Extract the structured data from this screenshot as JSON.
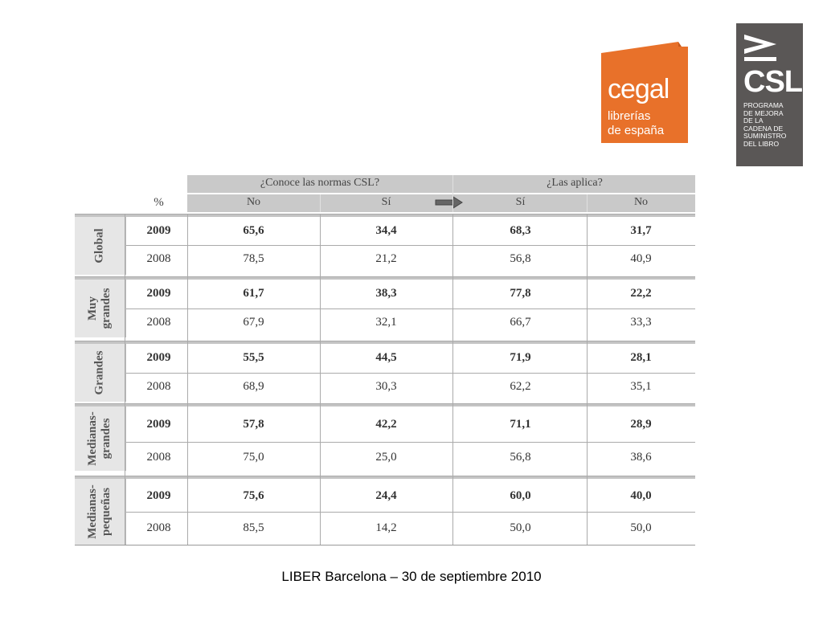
{
  "logos": {
    "cegal": {
      "main": "cegal",
      "sub1": "librerías",
      "sub2": "de españa",
      "color": "#e8712a"
    },
    "csl": {
      "mark": "CSL",
      "lines": [
        "PROGRAMA",
        "DE MEJORA",
        "DE LA",
        "CADENA DE",
        "SUMINISTRO",
        "DEL LIBRO"
      ],
      "color": "#5a5756"
    }
  },
  "table": {
    "unit": "%",
    "group1": "¿Conoce las normas CSL?",
    "group2": "¿Las aplica?",
    "columns": [
      "No",
      "Sí",
      "Sí",
      "No"
    ],
    "sections": [
      {
        "label": "Global",
        "rows": [
          {
            "year": "2009",
            "values": [
              "65,6",
              "34,4",
              "68,3",
              "31,7"
            ]
          },
          {
            "year": "2008",
            "values": [
              "78,5",
              "21,2",
              "56,8",
              "40,9"
            ]
          }
        ]
      },
      {
        "label": "Muy grandes",
        "rows": [
          {
            "year": "2009",
            "values": [
              "61,7",
              "38,3",
              "77,8",
              "22,2"
            ]
          },
          {
            "year": "2008",
            "values": [
              "67,9",
              "32,1",
              "66,7",
              "33,3"
            ]
          }
        ]
      },
      {
        "label": "Grandes",
        "rows": [
          {
            "year": "2009",
            "values": [
              "55,5",
              "44,5",
              "71,9",
              "28,1"
            ]
          },
          {
            "year": "2008",
            "values": [
              "68,9",
              "30,3",
              "62,2",
              "35,1"
            ]
          }
        ]
      },
      {
        "label": "Medianas- grandes",
        "rows": [
          {
            "year": "2009",
            "values": [
              "57,8",
              "42,2",
              "71,1",
              "28,9"
            ]
          },
          {
            "year": "2008",
            "values": [
              "75,0",
              "25,0",
              "56,8",
              "38,6"
            ]
          }
        ]
      },
      {
        "label": "Medianas- pequeñas",
        "rows": [
          {
            "year": "2009",
            "values": [
              "75,6",
              "24,4",
              "60,0",
              "40,0"
            ]
          },
          {
            "year": "2008",
            "values": [
              "85,5",
              "14,2",
              "50,0",
              "50,0"
            ]
          }
        ]
      }
    ]
  },
  "footer": "LIBER Barcelona – 30 de septiembre 2010"
}
